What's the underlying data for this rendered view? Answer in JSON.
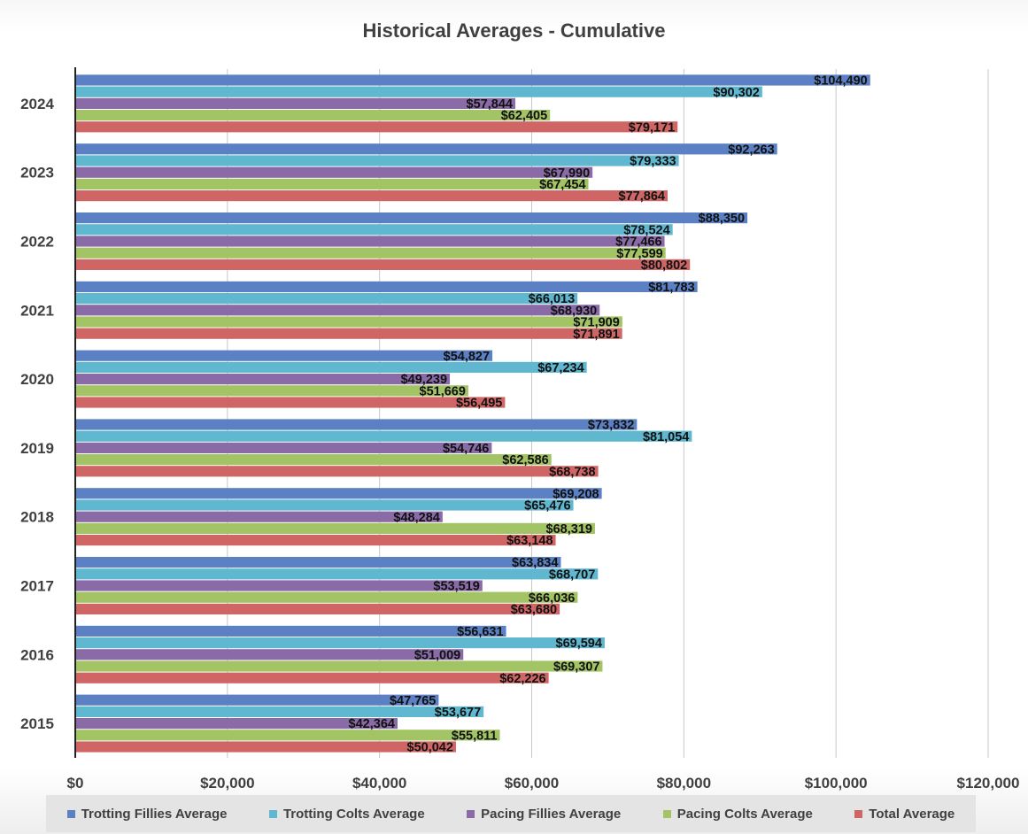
{
  "chart_data": {
    "type": "bar",
    "orientation": "horizontal",
    "title": "Historical Averages - Cumulative",
    "xlabel": "",
    "ylabel": "",
    "xlim": [
      0,
      120000
    ],
    "x_ticks": [
      "$0",
      "$20,000",
      "$40,000",
      "$60,000",
      "$80,000",
      "$100,000",
      "$120,000"
    ],
    "x_tick_values": [
      0,
      20000,
      40000,
      60000,
      80000,
      100000,
      120000
    ],
    "grid": "vertical",
    "legend_position": "bottom",
    "categories": [
      "2024",
      "2023",
      "2022",
      "2021",
      "2020",
      "2019",
      "2018",
      "2017",
      "2016",
      "2015"
    ],
    "series": [
      {
        "name": "Trotting Fillies Average",
        "color": "#5b80c3",
        "values": [
          104490,
          92263,
          88350,
          81783,
          54827,
          73832,
          69208,
          63834,
          56631,
          47765
        ],
        "labels": [
          "$104,490",
          "$92,263",
          "$88,350",
          "$81,783",
          "$54,827",
          "$73,832",
          "$69,208",
          "$63,834",
          "$56,631",
          "$47,765"
        ]
      },
      {
        "name": "Trotting Colts Average",
        "color": "#5fb8cf",
        "values": [
          90302,
          79333,
          78524,
          66013,
          67234,
          81054,
          65476,
          68707,
          69594,
          53677
        ],
        "labels": [
          "$90,302",
          "$79,333",
          "$78,524",
          "$66,013",
          "$67,234",
          "$81,054",
          "$65,476",
          "$68,707",
          "$69,594",
          "$53,677"
        ]
      },
      {
        "name": "Pacing Fillies Average",
        "color": "#8a6ba8",
        "values": [
          57844,
          67990,
          77466,
          68930,
          49239,
          54746,
          48284,
          53519,
          51009,
          42364
        ],
        "labels": [
          "$57,844",
          "$67,990",
          "$77,466",
          "$68,930",
          "$49,239",
          "$54,746",
          "$48,284",
          "$53,519",
          "$51,009",
          "$42,364"
        ]
      },
      {
        "name": "Pacing Colts Average",
        "color": "#a3c464",
        "values": [
          62405,
          67454,
          77599,
          71909,
          51669,
          62586,
          68319,
          66036,
          69307,
          55811
        ],
        "labels": [
          "$62,405",
          "$67,454",
          "$77,599",
          "$71,909",
          "$51,669",
          "$62,586",
          "$68,319",
          "$66,036",
          "$69,307",
          "$55,811"
        ]
      },
      {
        "name": "Total Average",
        "color": "#cf6565",
        "values": [
          79171,
          77864,
          80802,
          71891,
          56495,
          68738,
          63148,
          63680,
          62226,
          50042
        ],
        "labels": [
          "$79,171",
          "$77,864",
          "$80,802",
          "$71,891",
          "$56,495",
          "$68,738",
          "$63,148",
          "$63,680",
          "$62,226",
          "$50,042"
        ]
      }
    ]
  }
}
